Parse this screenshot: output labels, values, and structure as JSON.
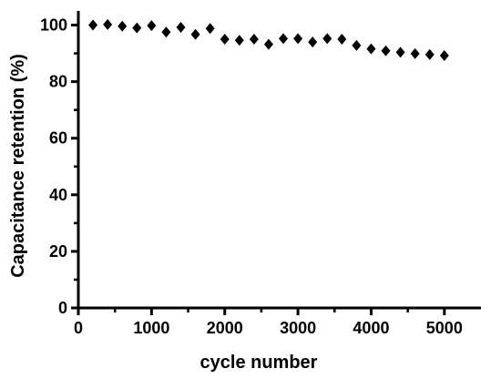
{
  "chart_data": {
    "type": "scatter",
    "xlabel": "cycle number",
    "ylabel": "Capacitance retention (%)",
    "xlim": [
      0,
      5500
    ],
    "ylim": [
      0,
      105
    ],
    "xticks": [
      0,
      1000,
      2000,
      3000,
      4000,
      5000
    ],
    "yticks": [
      0,
      20,
      40,
      60,
      80,
      100
    ],
    "grid": false,
    "marker": "diamond",
    "marker_color": "#000000",
    "series": [
      {
        "x": [
          200,
          400,
          600,
          800,
          1000,
          1200,
          1400,
          1600,
          1800,
          2000,
          2200,
          2400,
          2600,
          2800,
          3000,
          3200,
          3400,
          3600,
          3800,
          4000,
          4200,
          4400,
          4600,
          4800,
          5000
        ],
        "y": [
          100.0,
          100.2,
          99.6,
          99.0,
          99.8,
          97.5,
          99.2,
          96.7,
          98.8,
          95.0,
          94.6,
          95.0,
          93.2,
          95.2,
          95.2,
          94.0,
          95.2,
          95.0,
          92.8,
          91.6,
          90.9,
          90.4,
          89.9,
          89.6,
          89.2
        ]
      }
    ]
  }
}
